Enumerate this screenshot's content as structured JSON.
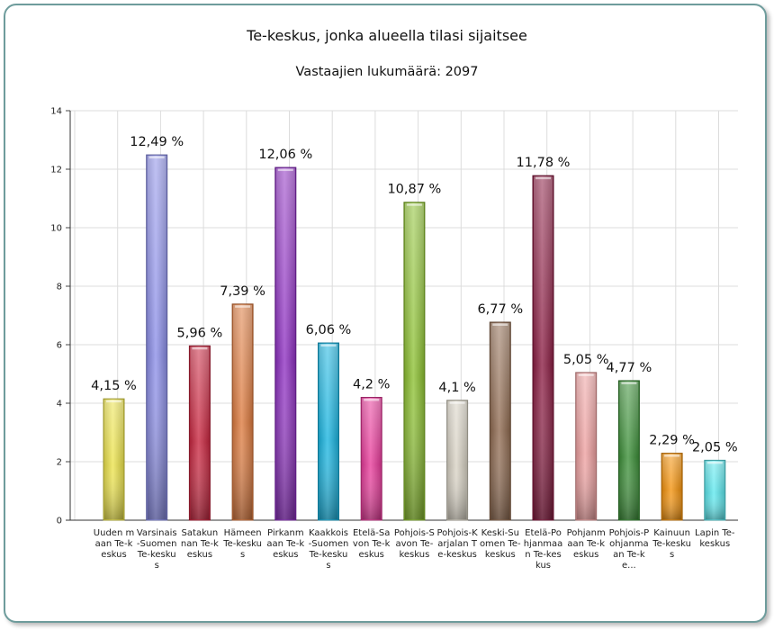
{
  "chart_data": {
    "type": "bar",
    "title": "Te-keskus, jonka alueella tilasi sijaitsee",
    "subtitle": "Vastaajien lukumäärä: 2097",
    "ylim": [
      0,
      14
    ],
    "yticks": [
      "0",
      "2",
      "4",
      "6",
      "8",
      "10",
      "12",
      "14"
    ],
    "grid": true,
    "categories": [
      "Uuden maan Te-keskus",
      "Varsinais-Suomen Te-keskus",
      "Satakunnan Te-keskus",
      "Hämeen Te-keskus",
      "Pirkanmaan Te-keskus",
      "Kaakkois-Suomen Te-keskus",
      "Etelä-Savon Te-keskus",
      "Pohjois-Savon Te-keskus",
      "Pohjois-Karjalan Te-keskus",
      "Keski-Suomen Te-keskus",
      "Etelä-Pohjanmaan Te-keskus",
      "Pohjanmaan Te-keskus",
      "Pohjois-Pohjanmaan Te-ke...",
      "Kainuun Te-keskus",
      "Lapin Te-keskus"
    ],
    "values": [
      4.15,
      12.49,
      5.96,
      7.39,
      12.06,
      6.06,
      4.2,
      10.87,
      4.1,
      6.77,
      11.78,
      5.05,
      4.77,
      2.29,
      2.05
    ],
    "labels": [
      "4,15 %",
      "12,49 %",
      "5,96 %",
      "7,39 %",
      "12,06 %",
      "6,06 %",
      "4,2 %",
      "10,87 %",
      "4,1 %",
      "6,77 %",
      "11,78 %",
      "5,05 %",
      "4,77 %",
      "2,29 %",
      "2,05 %"
    ],
    "colors": [
      "#ece34a",
      "#8b8ee8",
      "#c8243e",
      "#dd7a3e",
      "#8e2fc2",
      "#18b4e0",
      "#e8399a",
      "#8cc030",
      "#d8d2c4",
      "#8f6a50",
      "#8a1c42",
      "#eea0a0",
      "#3a8e36",
      "#f4920c",
      "#5ce8ee"
    ]
  }
}
